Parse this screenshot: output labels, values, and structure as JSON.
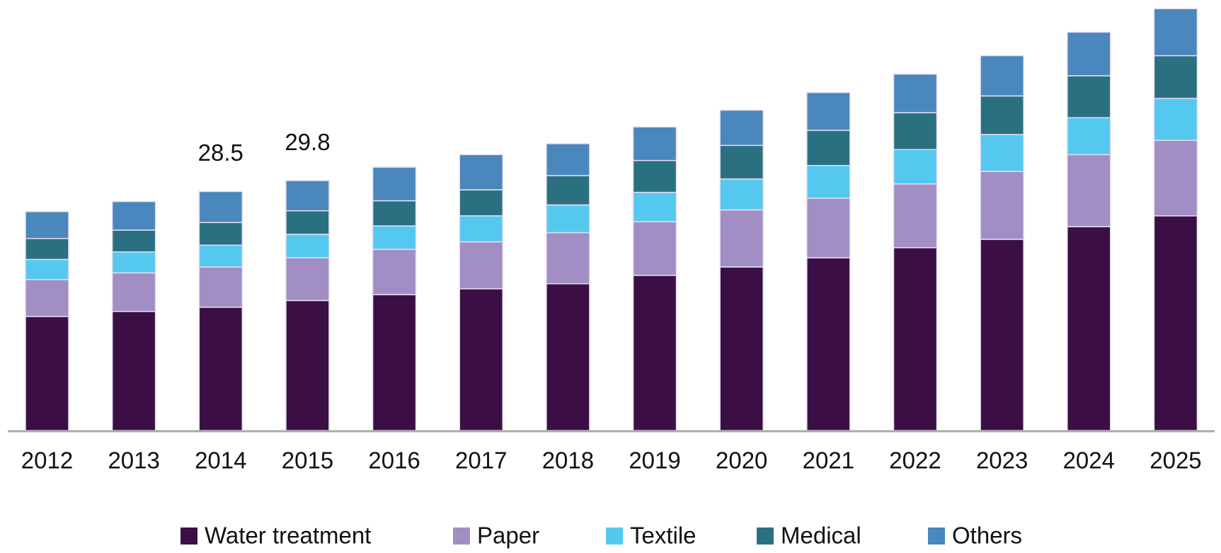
{
  "chart_data": {
    "type": "stacked_bar",
    "categories": [
      "2012",
      "2013",
      "2014",
      "2015",
      "2016",
      "2017",
      "2018",
      "2019",
      "2020",
      "2021",
      "2022",
      "2023",
      "2024",
      "2025"
    ],
    "series": [
      {
        "name": "Water treatment",
        "color": "#3b0f45",
        "values": [
          13.6,
          14.2,
          14.7,
          15.5,
          16.2,
          16.9,
          17.5,
          18.5,
          19.5,
          20.6,
          21.8,
          22.8,
          24.3,
          25.6
        ]
      },
      {
        "name": "Paper",
        "color": "#a08ec4",
        "values": [
          4.4,
          4.6,
          4.8,
          5.1,
          5.4,
          5.6,
          6.1,
          6.4,
          6.8,
          7.1,
          7.6,
          8.1,
          8.6,
          9.0
        ]
      },
      {
        "name": "Textile",
        "color": "#55c8f0",
        "values": [
          2.4,
          2.5,
          2.6,
          2.8,
          2.8,
          3.1,
          3.3,
          3.5,
          3.7,
          3.9,
          4.1,
          4.4,
          4.4,
          5.0
        ]
      },
      {
        "name": "Medical",
        "color": "#2a7080",
        "values": [
          2.5,
          2.6,
          2.7,
          2.8,
          3.0,
          3.1,
          3.5,
          3.8,
          4.0,
          4.2,
          4.4,
          4.6,
          5.0,
          5.1
        ]
      },
      {
        "name": "Others",
        "color": "#4a87bd",
        "values": [
          3.2,
          3.4,
          3.7,
          3.6,
          4.0,
          4.2,
          3.8,
          4.0,
          4.2,
          4.5,
          4.6,
          4.8,
          5.2,
          5.6
        ]
      }
    ],
    "total_labels": [
      null,
      null,
      "28.5",
      "29.8",
      null,
      null,
      null,
      null,
      null,
      null,
      null,
      null,
      null,
      null
    ],
    "ylim": [
      0,
      51
    ]
  }
}
